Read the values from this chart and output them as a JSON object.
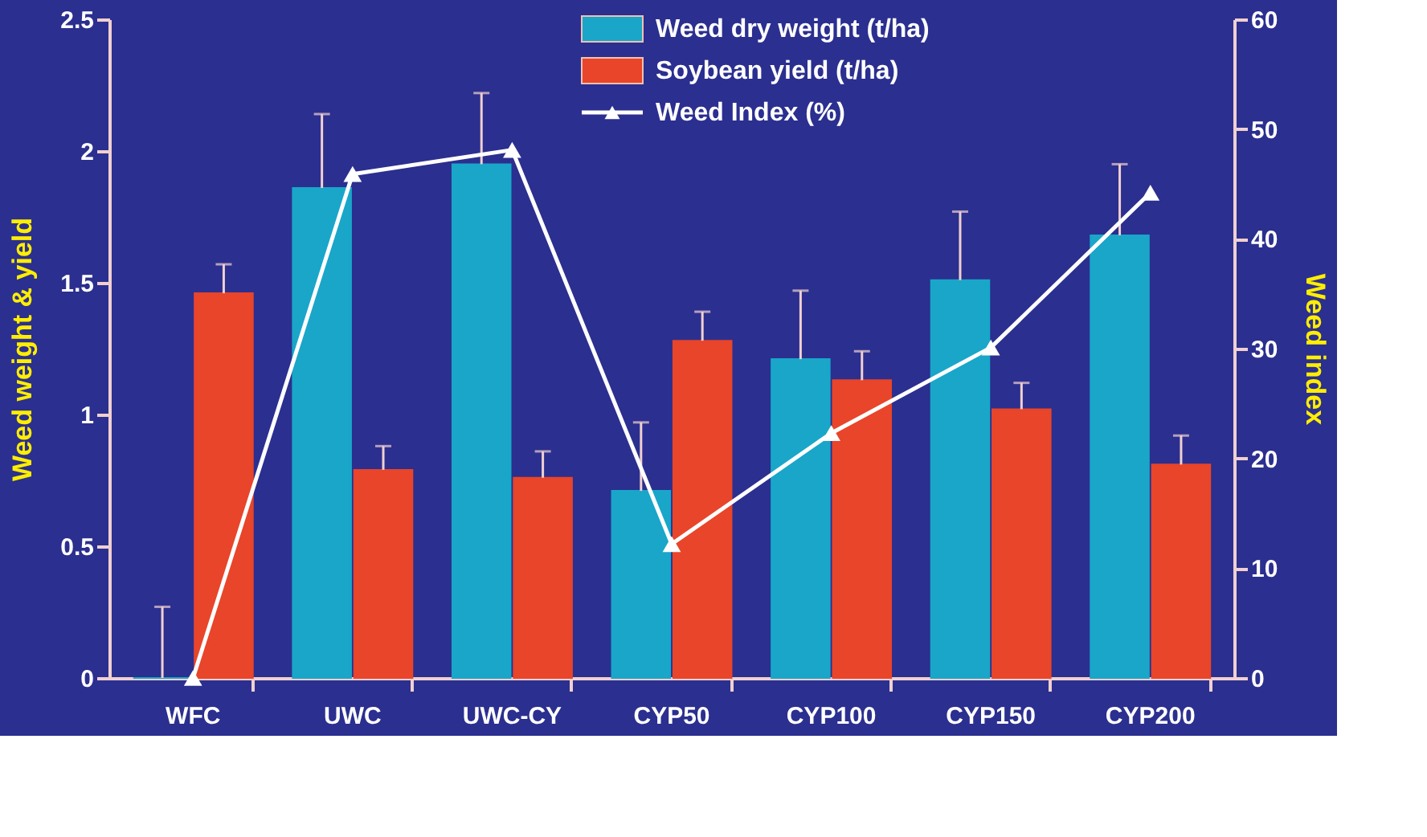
{
  "chart_data": {
    "type": "bar",
    "categories": [
      "WFC",
      "UWC",
      "UWC-CY",
      "CYP50",
      "CYP100",
      "CYP150",
      "CYP200"
    ],
    "ylabel": "Weed weight & yield",
    "y2label": "Weed index",
    "ylim": [
      0,
      2.5
    ],
    "yticks": [
      0,
      0.5,
      1,
      1.5,
      2,
      2.5
    ],
    "y2lim": [
      0,
      60
    ],
    "y2ticks": [
      0,
      10,
      20,
      30,
      40,
      50,
      60
    ],
    "series": [
      {
        "name": "Weed dry weight (t/ha)",
        "color": "#19a6c9",
        "values": [
          0,
          1.86,
          1.95,
          0.71,
          1.21,
          1.51,
          1.68
        ],
        "errors": [
          [
            0,
            0.27
          ],
          [
            1.86,
            2.14
          ],
          [
            1.95,
            2.22
          ],
          [
            0.71,
            0.97
          ],
          [
            1.21,
            1.47
          ],
          [
            1.51,
            1.77
          ],
          [
            1.68,
            1.95
          ]
        ]
      },
      {
        "name": "Soybean yield (t/ha)",
        "color": "#e8452a",
        "values": [
          1.46,
          0.79,
          0.76,
          1.28,
          1.13,
          1.02,
          0.81
        ],
        "errors": [
          [
            1.46,
            1.57
          ],
          [
            0.79,
            0.88
          ],
          [
            0.76,
            0.86
          ],
          [
            1.28,
            1.39
          ],
          [
            1.13,
            1.24
          ],
          [
            1.02,
            1.12
          ],
          [
            0.81,
            0.92
          ]
        ]
      },
      {
        "name": "Weed Index (%)",
        "type": "line",
        "axis": "y2",
        "color": "#ffffff",
        "marker": "triangle",
        "values": [
          0,
          45.9,
          48.1,
          12.2,
          22.3,
          30.1,
          44.2
        ]
      }
    ],
    "grid": false,
    "legend": "top"
  }
}
